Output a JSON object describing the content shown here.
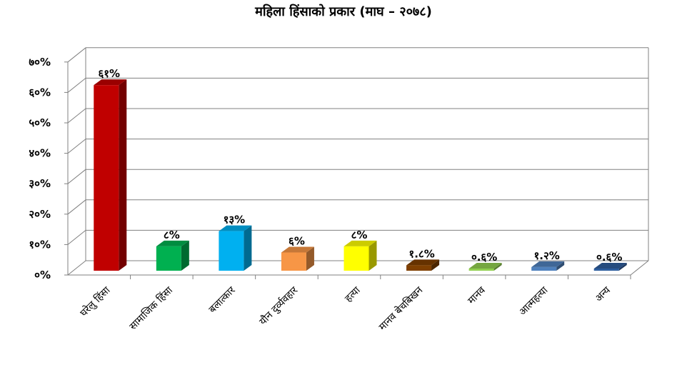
{
  "chart_data": {
    "type": "bar",
    "title": "महिला हिंसाको प्रकार (माघ – २०७८)",
    "categories": [
      "घरेलु हिंसा",
      "सामाजिक हिंसा",
      "बलात्कार",
      "यौन दुर्व्यवहार",
      "हत्या",
      "मानव बेचबिखन",
      "मानव",
      "आत्महत्या",
      "अन्य"
    ],
    "values": [
      61,
      8,
      13,
      6,
      8,
      1.8,
      0.6,
      1.2,
      0.6
    ],
    "data_labels": [
      "६१%",
      "८%",
      "१३%",
      "६%",
      "८%",
      "१.८%",
      "०.६%",
      "१.२%",
      "०.६%"
    ],
    "colors": [
      "#c00000",
      "#00b050",
      "#00b0f0",
      "#f79646",
      "#ffff00",
      "#7f3f00",
      "#92d050",
      "#4f81bd",
      "#2e5e9e"
    ],
    "ylim": [
      0,
      70
    ],
    "yticks": [
      "०%",
      "१०%",
      "२०%",
      "३०%",
      "४०%",
      "५०%",
      "६०%",
      "७०%"
    ],
    "grid": true,
    "xlabel": "",
    "ylabel": ""
  }
}
